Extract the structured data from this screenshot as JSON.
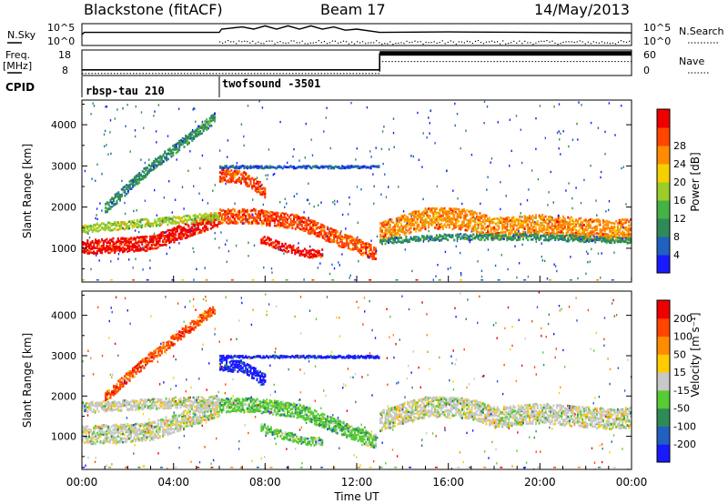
{
  "chart_data": [
    {
      "type": "line",
      "panel": "noise",
      "title": "Blackstone (fitACF)",
      "subtitle": "Beam 17",
      "date": "14/May/2013",
      "left_label": "N.Sky",
      "right_label": "N.Search",
      "left_ticks": [
        "10^5",
        "10^0"
      ],
      "right_ticks": [
        "10^5",
        "10^0"
      ],
      "xlim": [
        0,
        24
      ],
      "series": [
        {
          "name": "N.Sky",
          "x": [
            0,
            0.1,
            6,
            6.1,
            7,
            7.5,
            8,
            8.5,
            9,
            9.5,
            10,
            10.5,
            11,
            11.5,
            12,
            13,
            16,
            20,
            24
          ],
          "y": [
            0.5,
            0.6,
            0.6,
            0.75,
            0.85,
            0.75,
            0.9,
            0.75,
            0.9,
            0.75,
            0.9,
            0.75,
            0.85,
            0.7,
            0.75,
            0.6,
            0.62,
            0.6,
            0.58
          ]
        },
        {
          "name": "N.Search",
          "x": [
            6,
            24
          ],
          "y": [
            0.12,
            0.12
          ]
        }
      ]
    },
    {
      "type": "line",
      "panel": "frequency",
      "left_label": "Freq.\n[MHz]",
      "right_label": "Nave",
      "left_ticks": [
        "18",
        "8"
      ],
      "right_ticks": [
        "60",
        "0"
      ],
      "xlim": [
        0,
        24
      ],
      "series": [
        {
          "x": [
            0,
            13,
            13,
            24
          ],
          "y": [
            10.2,
            10.2,
            16.5,
            16.5
          ]
        },
        {
          "x": [
            0,
            13,
            13,
            24
          ],
          "y": [
            8.8,
            8.8,
            13.5,
            13.5
          ]
        }
      ]
    },
    {
      "type": "heatmap",
      "panel": "cpid",
      "label": "CPID",
      "segments": [
        {
          "start": 0,
          "name": "rbsp-tau 210"
        },
        {
          "start": 6,
          "name": "twofsound -3501"
        }
      ]
    },
    {
      "type": "heatmap",
      "panel": "power",
      "ylabel": "Slant Range [km]",
      "xlim": [
        0,
        24
      ],
      "ylim": [
        180,
        4600
      ],
      "yticks": [
        1000,
        2000,
        3000,
        4000
      ],
      "colorbar": {
        "label": "Power [dB]",
        "ticks": [
          4,
          8,
          12,
          16,
          20,
          24,
          28
        ],
        "colors": [
          "#1a1aff",
          "#2060c0",
          "#2e8b57",
          "#44b244",
          "#9bcc2a",
          "#f5d000",
          "#ff8c00",
          "#ff4500",
          "#ee0000"
        ]
      },
      "bands": [
        {
          "x": [
            0,
            3,
            6
          ],
          "y": [
            1050,
            1150,
            1750
          ],
          "width": 350,
          "color_index": 8
        },
        {
          "x": [
            0,
            6
          ],
          "y": [
            1500,
            1800
          ],
          "width": 200,
          "color_index": 4
        },
        {
          "x": [
            6,
            7.5,
            9.5,
            11,
            12.8
          ],
          "y": [
            1800,
            1800,
            1650,
            1300,
            900
          ],
          "width": 350,
          "color_index": 7
        },
        {
          "x": [
            6,
            7,
            8
          ],
          "y": [
            2800,
            2750,
            2400
          ],
          "width": 300,
          "color_index": 7
        },
        {
          "x": [
            7.8,
            8.8,
            9.8,
            10.5
          ],
          "y": [
            1250,
            1050,
            900,
            900
          ],
          "width": 200,
          "color_index": 8
        },
        {
          "x": [
            13,
            14,
            15,
            16,
            17,
            18,
            19,
            20,
            21,
            22,
            23,
            24
          ],
          "y": [
            1400,
            1600,
            1750,
            1750,
            1700,
            1500,
            1550,
            1600,
            1550,
            1500,
            1450,
            1500
          ],
          "width": 500,
          "color_index": 6
        },
        {
          "x": [
            13,
            16,
            20,
            24
          ],
          "y": [
            1200,
            1300,
            1300,
            1200
          ],
          "width": 150,
          "color_index": 2
        },
        {
          "x": [
            1,
            3,
            5.8
          ],
          "y": [
            2000,
            3000,
            4200
          ],
          "width": 250,
          "color_index": 2
        },
        {
          "x": [
            6,
            13
          ],
          "y": [
            3000,
            3000
          ],
          "width": 60,
          "color_index": 1
        }
      ]
    },
    {
      "type": "heatmap",
      "panel": "velocity",
      "ylabel": "Slant Range [km]",
      "xlabel": "Time UT",
      "xlim": [
        0,
        24
      ],
      "ylim": [
        180,
        4600
      ],
      "yticks": [
        1000,
        2000,
        3000,
        4000
      ],
      "xticks": [
        "00:00",
        "04:00",
        "08:00",
        "12:00",
        "16:00",
        "20:00",
        "00:00"
      ],
      "colorbar": {
        "label": "Velocity [m s⁻¹]",
        "ticks": [
          200,
          100,
          50,
          15,
          -15,
          -50,
          -100,
          -200
        ],
        "colors": [
          "#1a1aff",
          "#2060c0",
          "#2e8b57",
          "#55cc33",
          "#c8c8c8",
          "#ffcc00",
          "#ff8c00",
          "#ff4500",
          "#ee0000"
        ]
      },
      "bands": [
        {
          "x": [
            0,
            3,
            6
          ],
          "y": [
            1050,
            1150,
            1750
          ],
          "width": 450,
          "color_index": 4
        },
        {
          "x": [
            0,
            6
          ],
          "y": [
            1750,
            1900
          ],
          "width": 250,
          "color_index": 4
        },
        {
          "x": [
            6,
            7.5,
            9.5,
            11,
            12.8
          ],
          "y": [
            1800,
            1800,
            1650,
            1300,
            900
          ],
          "width": 350,
          "color_index": 3
        },
        {
          "x": [
            6,
            7,
            8
          ],
          "y": [
            2800,
            2750,
            2400
          ],
          "width": 300,
          "color_index": 0
        },
        {
          "x": [
            7.8,
            8.8,
            9.8,
            10.5
          ],
          "y": [
            1250,
            1050,
            900,
            900
          ],
          "width": 200,
          "color_index": 3
        },
        {
          "x": [
            13,
            14,
            15,
            16,
            17,
            18,
            19,
            20,
            21,
            22,
            23,
            24
          ],
          "y": [
            1400,
            1600,
            1750,
            1750,
            1700,
            1500,
            1550,
            1600,
            1550,
            1500,
            1450,
            1500
          ],
          "width": 500,
          "color_index": 4
        },
        {
          "x": [
            1,
            3,
            5.8
          ],
          "y": [
            2000,
            3000,
            4200
          ],
          "width": 250,
          "color_index": 7
        },
        {
          "x": [
            6,
            13
          ],
          "y": [
            3000,
            3000
          ],
          "width": 60,
          "color_index": 0
        }
      ]
    }
  ]
}
